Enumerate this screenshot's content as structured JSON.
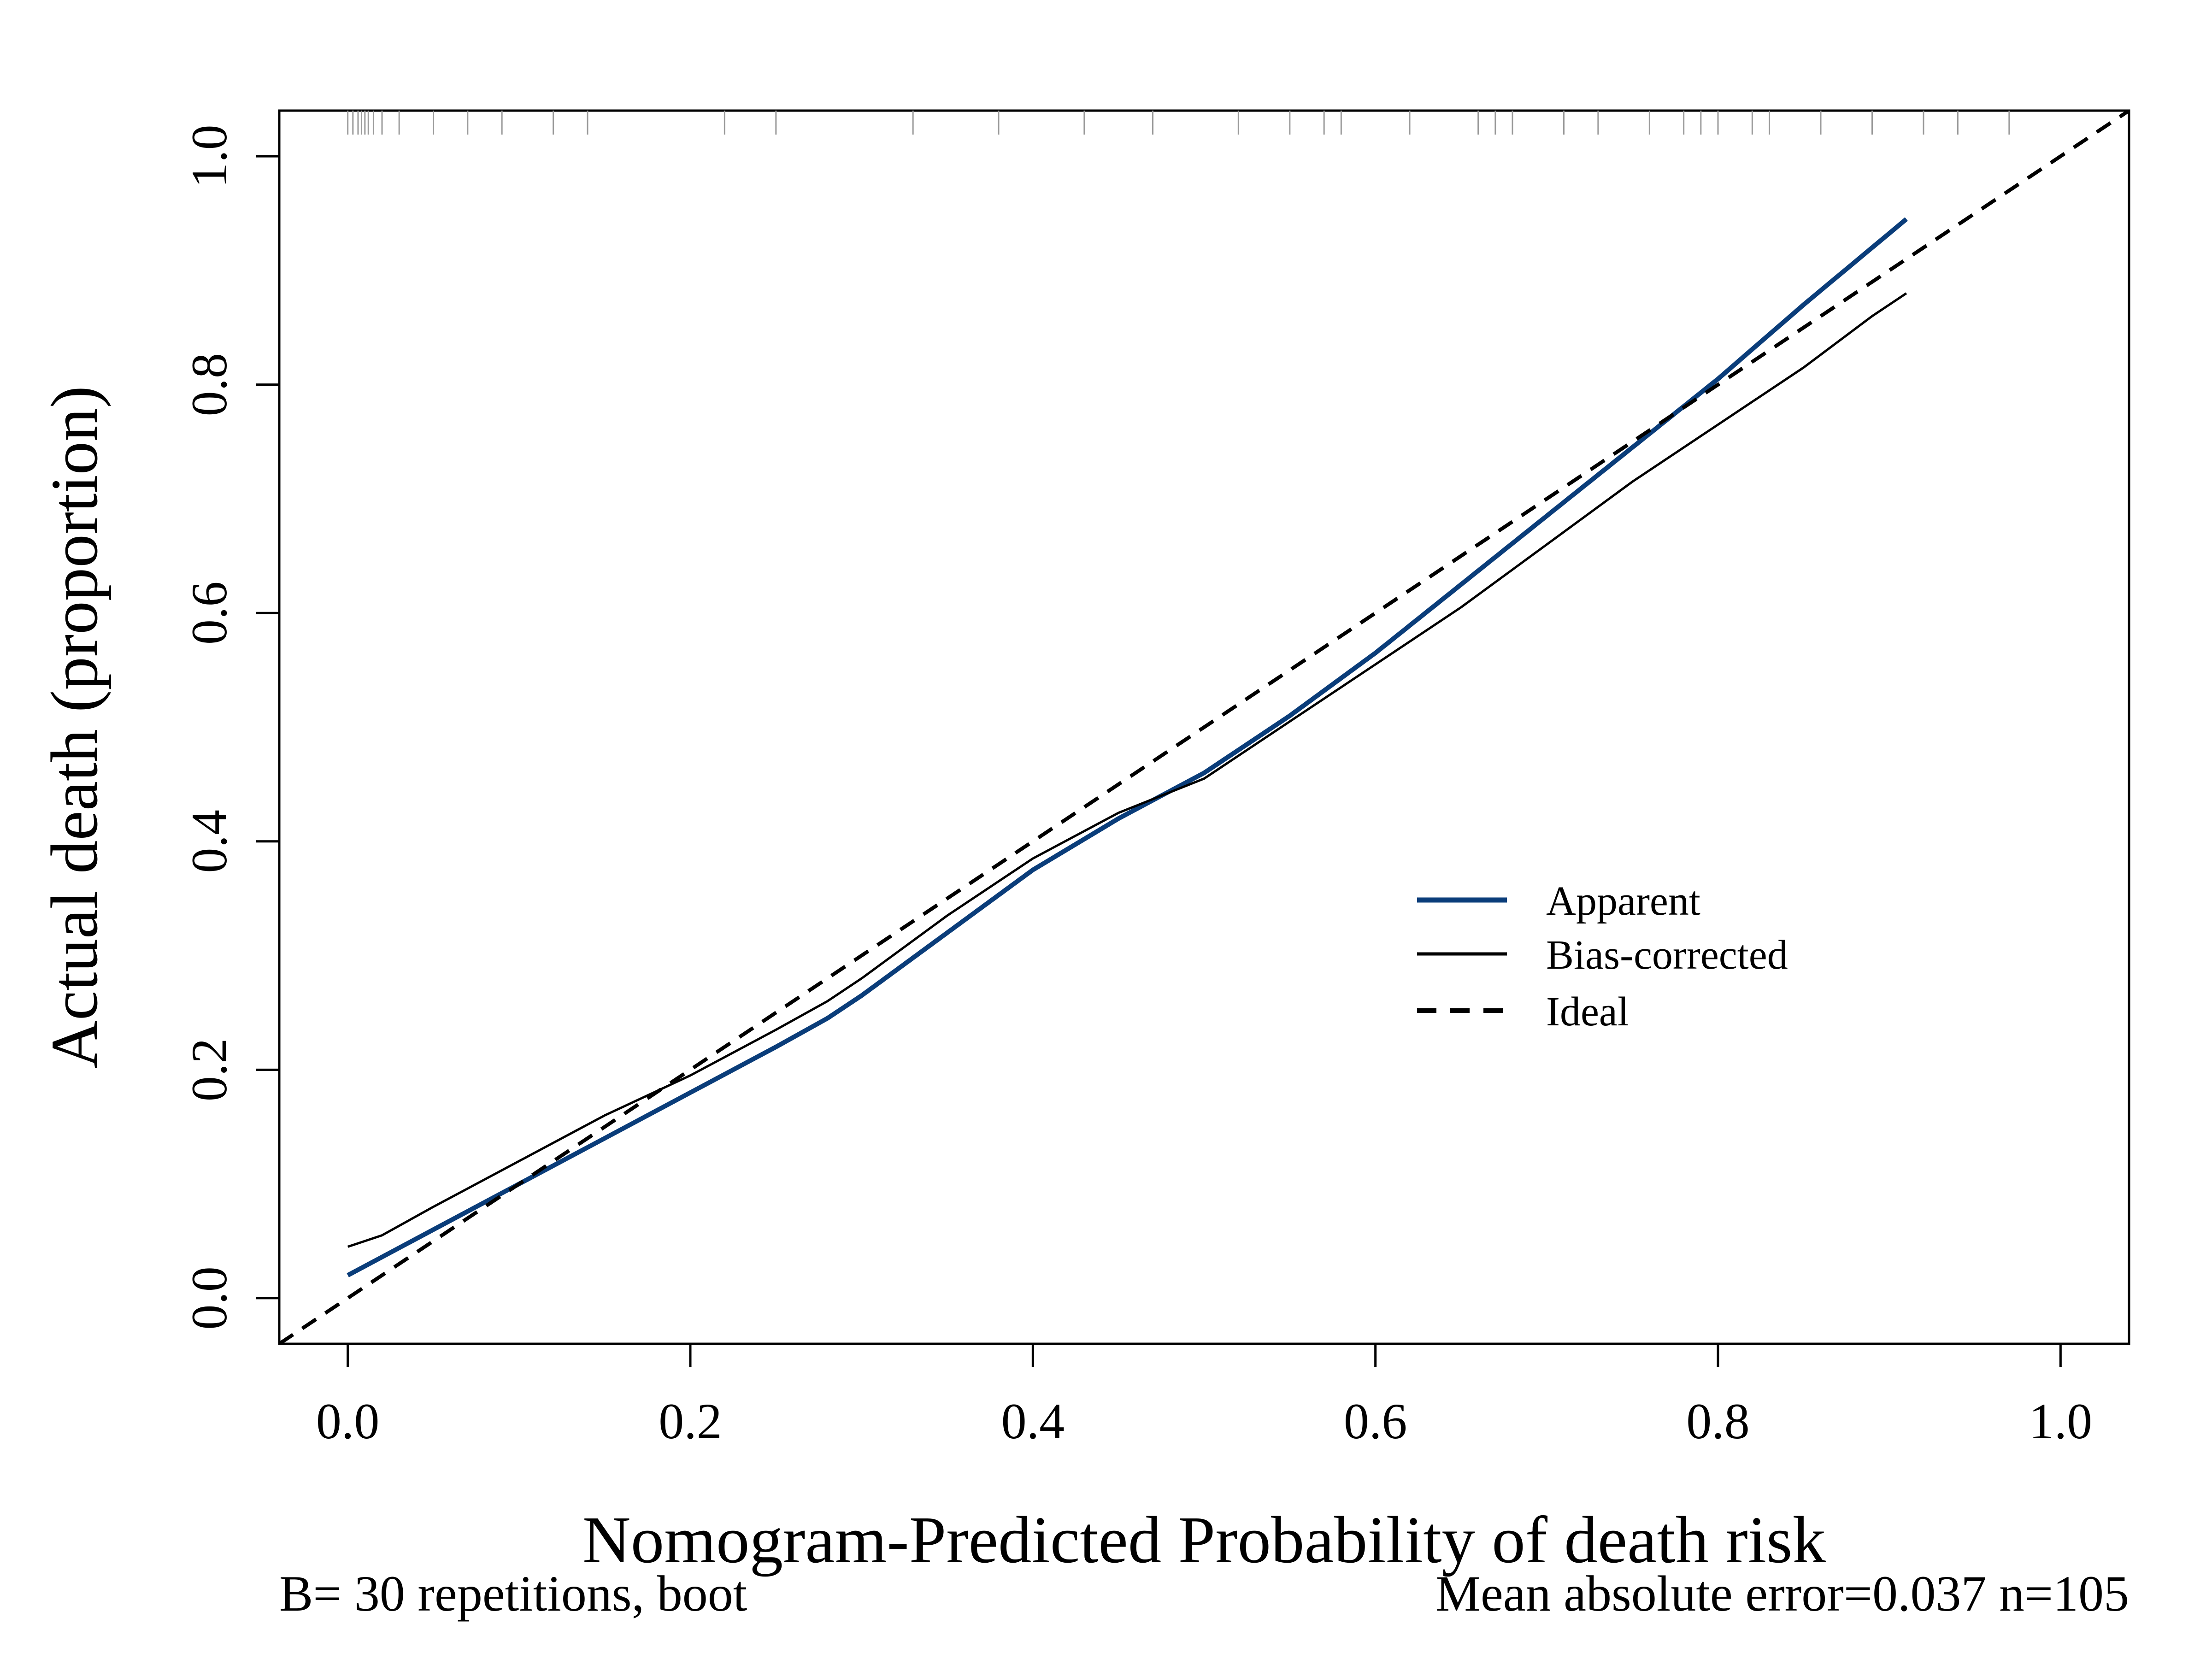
{
  "chart_data": {
    "type": "line",
    "title": "",
    "xlabel": "Nomogram-Predicted Probability of death risk",
    "ylabel": "Actual death (proportion)",
    "xlim": [
      -0.04,
      1.04
    ],
    "ylim": [
      -0.04,
      1.04
    ],
    "xticks": [
      "0.0",
      "0.2",
      "0.4",
      "0.6",
      "0.8",
      "1.0"
    ],
    "yticks": [
      "0.0",
      "0.2",
      "0.4",
      "0.6",
      "0.8",
      "1.0"
    ],
    "grid": false,
    "legend_position": "center-right",
    "footer_left": "B= 30 repetitions, boot",
    "footer_right": "Mean absolute error=0.037 n=105",
    "series": [
      {
        "name": "Apparent",
        "color": "#0a3d7a",
        "style": "solid",
        "x": [
          0.0,
          0.05,
          0.1,
          0.15,
          0.2,
          0.25,
          0.28,
          0.3,
          0.35,
          0.4,
          0.45,
          0.5,
          0.55,
          0.6,
          0.65,
          0.7,
          0.75,
          0.8,
          0.85,
          0.91
        ],
        "y": [
          0.02,
          0.06,
          0.1,
          0.14,
          0.18,
          0.22,
          0.245,
          0.265,
          0.32,
          0.375,
          0.42,
          0.46,
          0.51,
          0.565,
          0.625,
          0.685,
          0.745,
          0.805,
          0.87,
          0.945
        ]
      },
      {
        "name": "Bias-corrected",
        "color": "#000000",
        "style": "solid",
        "x": [
          0.0,
          0.02,
          0.05,
          0.1,
          0.15,
          0.2,
          0.25,
          0.28,
          0.3,
          0.35,
          0.4,
          0.45,
          0.5,
          0.55,
          0.6,
          0.65,
          0.7,
          0.75,
          0.8,
          0.85,
          0.89,
          0.91
        ],
        "y": [
          0.045,
          0.055,
          0.08,
          0.12,
          0.16,
          0.195,
          0.235,
          0.26,
          0.28,
          0.335,
          0.385,
          0.425,
          0.455,
          0.505,
          0.555,
          0.605,
          0.66,
          0.715,
          0.765,
          0.815,
          0.86,
          0.88
        ]
      },
      {
        "name": "Ideal",
        "color": "#000000",
        "style": "dashed",
        "x": [
          -0.04,
          1.04
        ],
        "y": [
          -0.04,
          1.04
        ]
      }
    ],
    "rug_x": [
      0.0,
      0.003,
      0.006,
      0.008,
      0.01,
      0.012,
      0.015,
      0.02,
      0.03,
      0.05,
      0.07,
      0.09,
      0.12,
      0.14,
      0.22,
      0.25,
      0.33,
      0.38,
      0.43,
      0.47,
      0.52,
      0.55,
      0.57,
      0.58,
      0.62,
      0.66,
      0.67,
      0.68,
      0.71,
      0.73,
      0.76,
      0.78,
      0.79,
      0.8,
      0.82,
      0.83,
      0.86,
      0.89,
      0.92,
      0.94,
      0.97
    ]
  }
}
